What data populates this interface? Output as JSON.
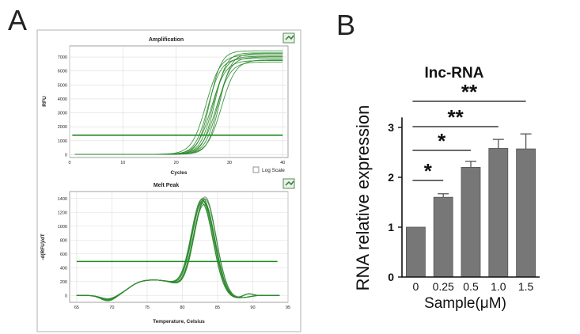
{
  "panels": {
    "a_letter": "A",
    "b_letter": "B"
  },
  "chart_data": [
    {
      "panel": "A-top",
      "type": "line",
      "title": "Amplification",
      "xlabel": "Cycles",
      "ylabel": "RFU",
      "xlim": [
        0,
        41
      ],
      "ylim": [
        -200,
        7800
      ],
      "xticks": [
        0,
        10,
        20,
        30,
        40
      ],
      "yticks": [
        0,
        1000,
        2000,
        3000,
        4000,
        5000,
        6000,
        7000
      ],
      "grid": true,
      "checkbox_label": "Log Scale",
      "threshold": 1400,
      "series_color": "#2e8b2e",
      "midpoints": [
        25.6,
        26.0,
        26.3,
        26.6,
        26.9,
        27.2,
        27.5,
        27.8,
        28.1,
        28.5
      ],
      "plateaus": [
        7150,
        6900,
        7450,
        6750,
        7050,
        7300,
        6650,
        7000,
        7250,
        6800
      ]
    },
    {
      "panel": "A-bottom",
      "type": "line",
      "title": "Melt Peak",
      "xlabel": "Temperature, Celsius",
      "ylabel": "-d(RFU)/dT",
      "xlim": [
        64,
        95
      ],
      "ylim": [
        -100,
        1500
      ],
      "xticks": [
        65,
        70,
        75,
        80,
        85,
        90,
        95
      ],
      "yticks": [
        0,
        200,
        400,
        600,
        800,
        1000,
        1200,
        1400
      ],
      "grid": true,
      "threshold": 490,
      "series_color": "#2e8b2e",
      "peak_temperature": 83,
      "peak_heights": [
        1380,
        1400,
        1350,
        1420,
        1330,
        1370,
        1310,
        1390
      ]
    },
    {
      "panel": "B",
      "type": "bar",
      "title": "Inc-RNA",
      "xlabel": "Sample(μM)",
      "ylabel": "RNA relative expression",
      "categories": [
        "0",
        "0.25",
        "0.5",
        "1.0",
        "1.5"
      ],
      "values": [
        1.0,
        1.6,
        2.2,
        2.58,
        2.57
      ],
      "errors": [
        0,
        0.07,
        0.12,
        0.18,
        0.3
      ],
      "ylim": [
        0,
        3.2
      ],
      "yticks": [
        "0",
        "1",
        "2",
        "3"
      ],
      "bar_color": "#777777",
      "significance": [
        {
          "from": "0",
          "to": "0.25",
          "label": "*"
        },
        {
          "from": "0",
          "to": "0.5",
          "label": "*"
        },
        {
          "from": "0",
          "to": "1.0",
          "label": "**"
        },
        {
          "from": "0",
          "to": "1.5",
          "label": "**"
        }
      ]
    }
  ]
}
